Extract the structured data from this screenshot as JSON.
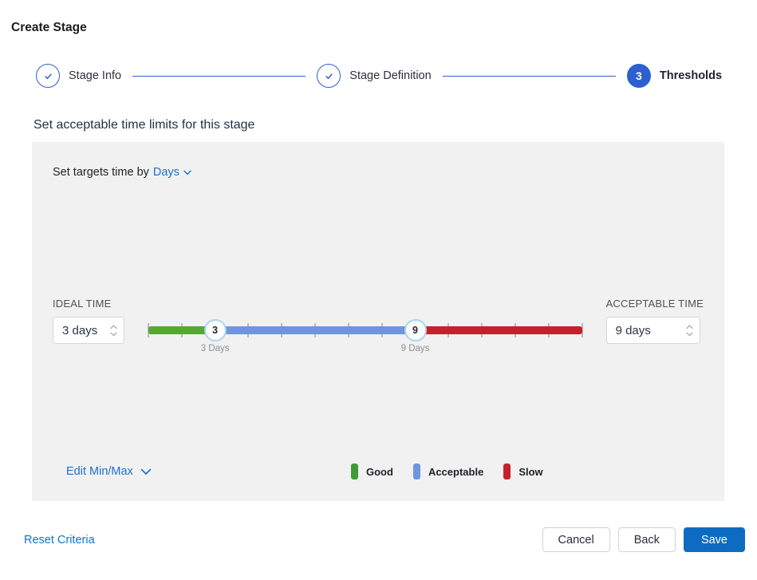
{
  "page": {
    "title": "Create Stage"
  },
  "stepper": {
    "steps": [
      {
        "label": "Stage Info",
        "state": "complete"
      },
      {
        "label": "Stage Definition",
        "state": "complete"
      },
      {
        "label": "Thresholds",
        "state": "current",
        "number": "3"
      }
    ]
  },
  "section": {
    "heading": "Set acceptable time limits for this stage"
  },
  "panel": {
    "targets": {
      "prefix": "Set targets time by",
      "unit": "Days"
    },
    "ideal": {
      "label": "IDEAL TIME",
      "value": "3 days"
    },
    "acceptable": {
      "label": "ACCEPTABLE TIME",
      "value": "9 days"
    },
    "slider": {
      "min": 1,
      "max": 14,
      "unit": "Days",
      "handles": [
        {
          "name": "ideal",
          "value": 3,
          "label": "3 Days"
        },
        {
          "name": "acceptable",
          "value": 9,
          "label": "9 Days"
        }
      ],
      "segments": [
        {
          "name": "good",
          "from": 1,
          "to": 3,
          "color": "#55a933"
        },
        {
          "name": "acceptable",
          "from": 3,
          "to": 9,
          "color": "#6e95de"
        },
        {
          "name": "slow",
          "from": 9,
          "to": 14,
          "color": "#c6202c"
        }
      ]
    },
    "edit_minmax": "Edit Min/Max",
    "legend": [
      {
        "label": "Good",
        "color": "#3f9c35"
      },
      {
        "label": "Acceptable",
        "color": "#6e95de"
      },
      {
        "label": "Slow",
        "color": "#c6202c"
      }
    ]
  },
  "footer": {
    "reset": "Reset Criteria",
    "cancel": "Cancel",
    "back": "Back",
    "save": "Save"
  },
  "colors": {
    "stepper_blue": "#2d5fd0",
    "link_blue": "#1c6fce",
    "save_blue": "#0d6cc1",
    "panel_bg": "#f1f1f1",
    "handle_ring": "#a9d6ee"
  }
}
